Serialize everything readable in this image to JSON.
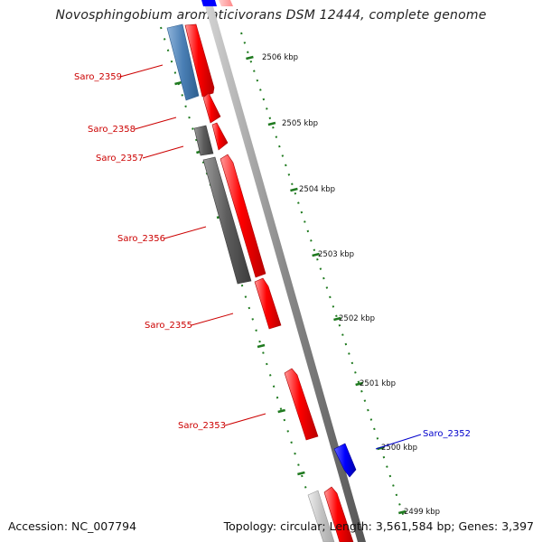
{
  "title": "Novosphingobium aromaticivorans DSM 12444, complete genome",
  "accession": "Accession: NC_007794",
  "summary": "Topology: circular; Length: 3,561,584 bp; Genes: 3,397",
  "ticks": [
    "2506 kbp",
    "2505 kbp",
    "2504 kbp",
    "2503 kbp",
    "2502 kbp",
    "2501 kbp",
    "2500 kbp",
    "2499 kbp"
  ],
  "genes": [
    {
      "name": "Saro_2359",
      "color": "#cc0000"
    },
    {
      "name": "Saro_2358",
      "color": "#cc0000"
    },
    {
      "name": "Saro_2357",
      "color": "#cc0000"
    },
    {
      "name": "Saro_2356",
      "color": "#cc0000"
    },
    {
      "name": "Saro_2355",
      "color": "#cc0000"
    },
    {
      "name": "Saro_2353",
      "color": "#cc0000"
    },
    {
      "name": "Saro_2352",
      "color": "#0000cc"
    }
  ],
  "colors": {
    "forward_cds": "#ff0000",
    "reverse_cds": "#0000ff",
    "rna_blue": "#4a7fb5",
    "gray_feature": "#666666",
    "backbone": "#8c8c8c",
    "tick": "#1f7a1f"
  }
}
